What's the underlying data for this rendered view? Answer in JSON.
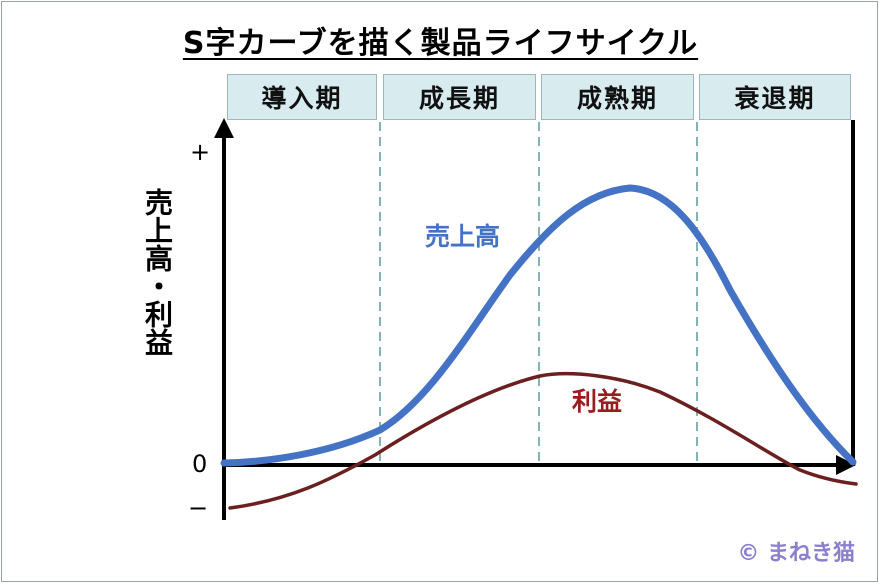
{
  "title": "S字カーブを描く製品ライフサイクル",
  "phases": [
    "導入期",
    "成長期",
    "成熟期",
    "衰退期"
  ],
  "y_axis_label": "売上高・利益",
  "ticks": {
    "plus": "+",
    "zero": "0",
    "minus": "−"
  },
  "series_labels": {
    "sales": "売上高",
    "profit": "利益"
  },
  "copyright": "© まねき猫",
  "colors": {
    "sales": "#4472c4",
    "profit": "#6b1f1f",
    "phase_bg": "#d8ecf0",
    "divider": "#5b9a9a",
    "copyright": "#8b7fcf"
  }
}
